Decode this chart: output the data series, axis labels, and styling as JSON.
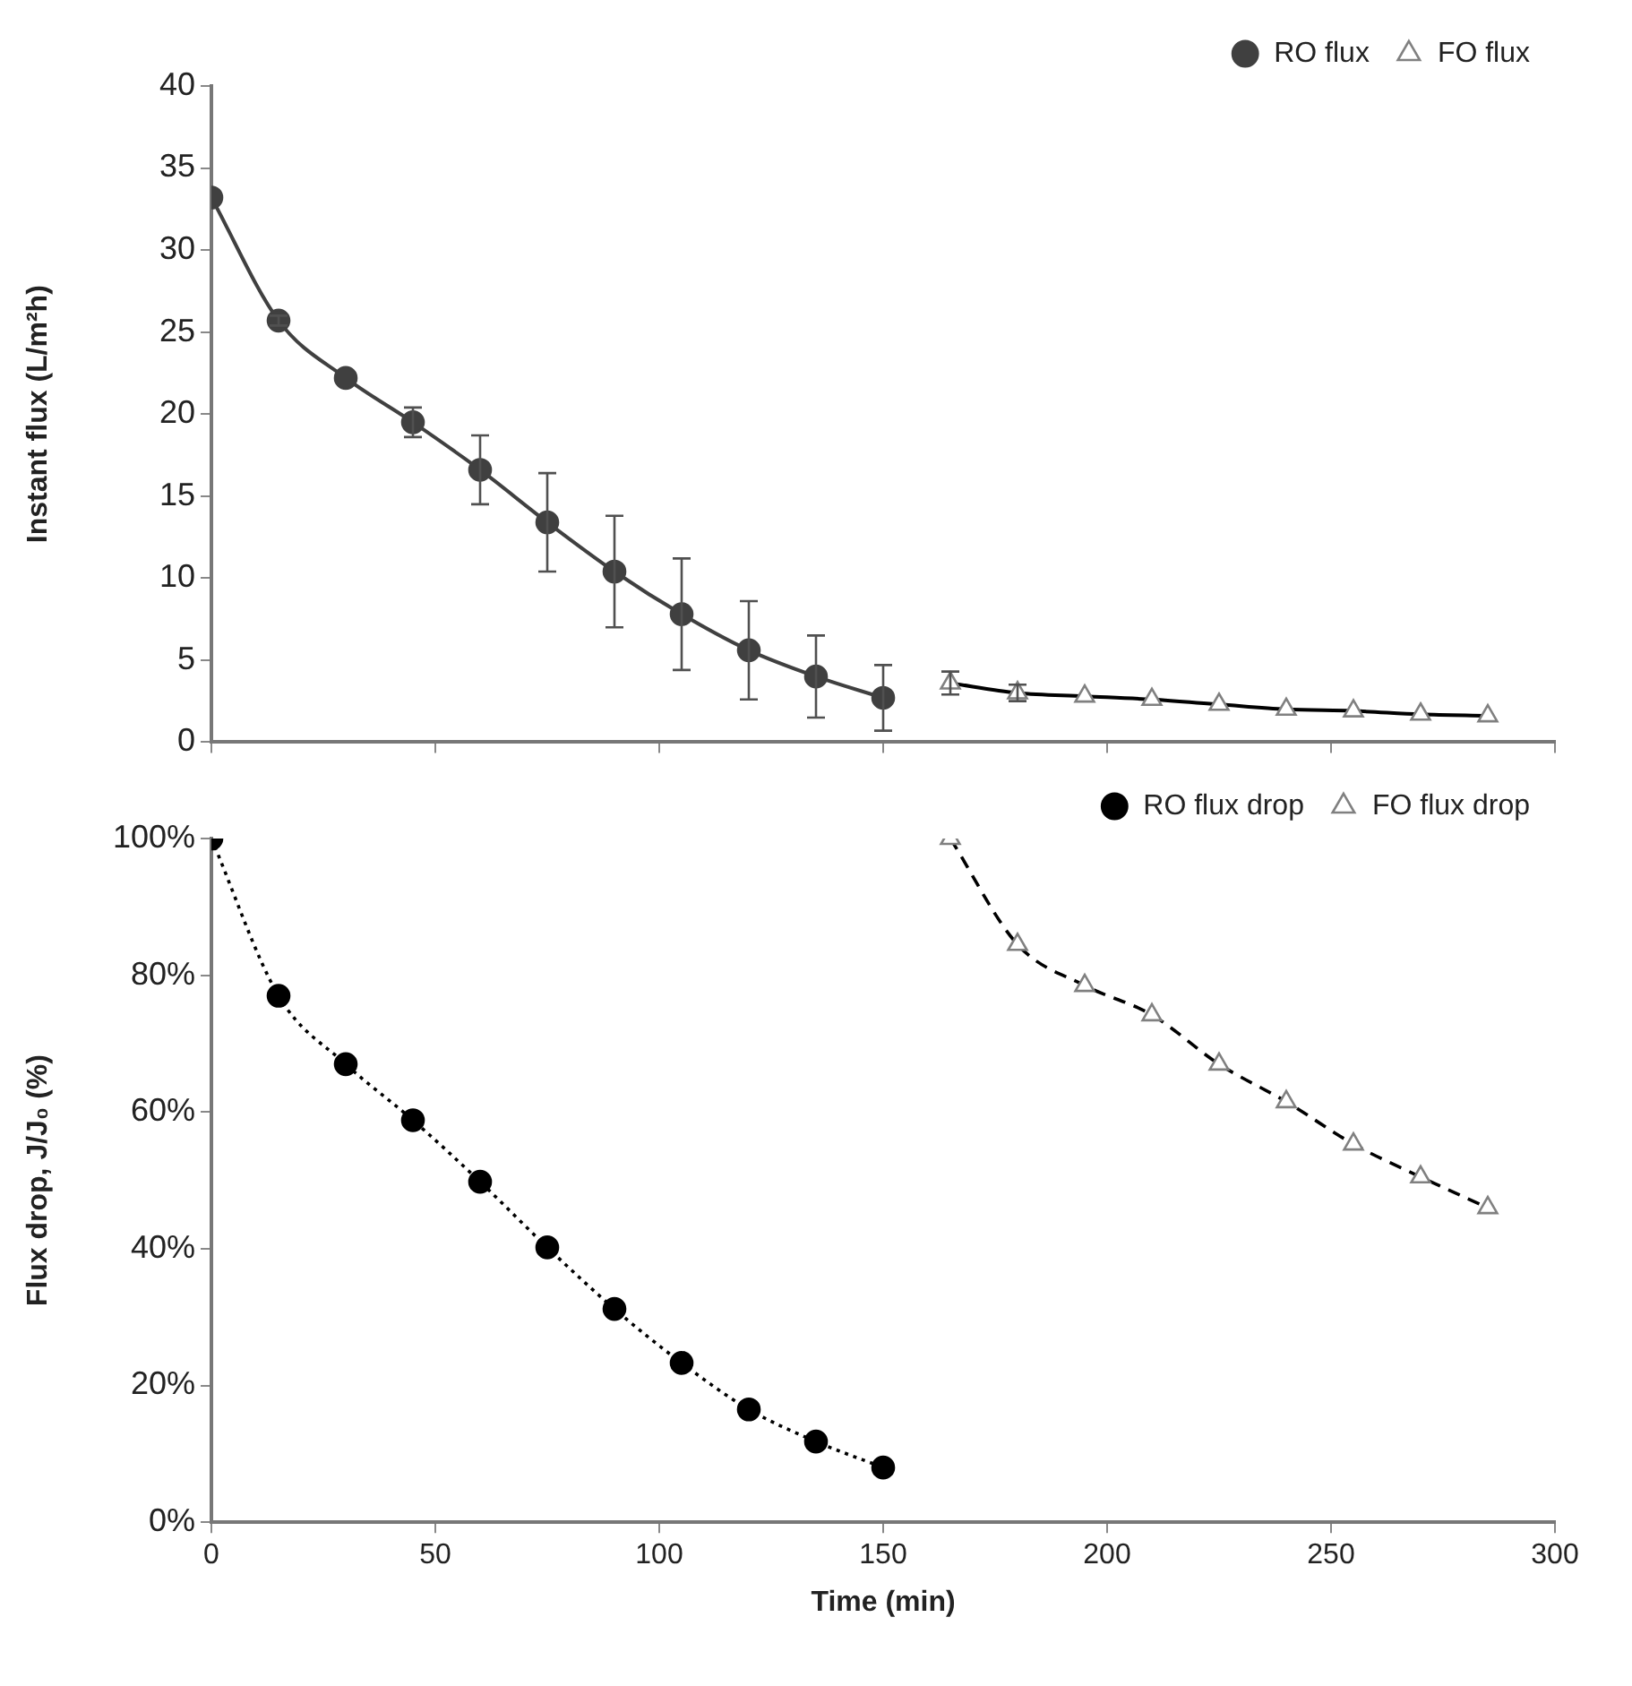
{
  "chart_data": [
    {
      "type": "line",
      "ylabel": "Instant flux (L/m²h)",
      "xlim": [
        0,
        300
      ],
      "xticks": [
        0,
        50,
        100,
        150,
        200,
        250,
        300
      ],
      "ylim": [
        0,
        40
      ],
      "yticks": [
        0,
        5,
        10,
        15,
        20,
        25,
        30,
        35,
        40
      ],
      "tick_labels": "y",
      "grid": false,
      "legend": "top right",
      "series": [
        {
          "name": "RO flux",
          "color": "#404040",
          "marker": "circle",
          "line_style": "solid",
          "x": [
            0,
            15,
            30,
            45,
            60,
            75,
            90,
            105,
            120,
            135,
            150
          ],
          "values": [
            33.2,
            25.7,
            22.2,
            19.5,
            16.6,
            13.4,
            10.4,
            7.8,
            5.6,
            4.0,
            2.7
          ],
          "errors": [
            null,
            0.3,
            null,
            0.9,
            2.1,
            3.0,
            3.4,
            3.4,
            3.0,
            2.5,
            2.0
          ]
        },
        {
          "name": "FO flux",
          "color": "#000000",
          "marker": "triangle",
          "line_style": "solid",
          "x": [
            165,
            180,
            195,
            210,
            225,
            240,
            255,
            270,
            285
          ],
          "values": [
            3.6,
            3.0,
            2.8,
            2.6,
            2.3,
            2.0,
            1.9,
            1.7,
            1.6
          ],
          "errors": [
            0.7,
            0.5,
            null,
            null,
            null,
            null,
            null,
            null,
            null
          ]
        }
      ]
    },
    {
      "type": "line",
      "xlabel": "Time (min)",
      "ylabel": "Flux drop, J/J₀ (%)",
      "xlim": [
        0,
        300
      ],
      "xticks": [
        0,
        50,
        100,
        150,
        200,
        250,
        300
      ],
      "ylim": [
        0,
        100
      ],
      "yticks": [
        {
          "value": 0,
          "label": "0%"
        },
        {
          "value": 20,
          "label": "20%"
        },
        {
          "value": 40,
          "label": "40%"
        },
        {
          "value": 60,
          "label": "60%"
        },
        {
          "value": 80,
          "label": "80%"
        },
        {
          "value": 100,
          "label": "100%"
        }
      ],
      "grid": false,
      "legend": "top right",
      "series": [
        {
          "name": "RO flux drop",
          "color": "#000000",
          "marker": "circle",
          "line_style": "dotted",
          "x": [
            0,
            15,
            30,
            45,
            60,
            75,
            90,
            105,
            120,
            135,
            150
          ],
          "values": [
            100,
            77,
            67,
            58.8,
            49.8,
            40.2,
            31.2,
            23.3,
            16.5,
            11.8,
            8.0
          ]
        },
        {
          "name": "FO flux drop",
          "color": "#000000",
          "marker": "triangle",
          "line_style": "dashed",
          "x": [
            165,
            180,
            195,
            210,
            225,
            240,
            255,
            270,
            285
          ],
          "values": [
            100,
            84.5,
            78.5,
            74.2,
            67,
            61.5,
            55.3,
            50.5,
            46
          ]
        }
      ]
    }
  ]
}
